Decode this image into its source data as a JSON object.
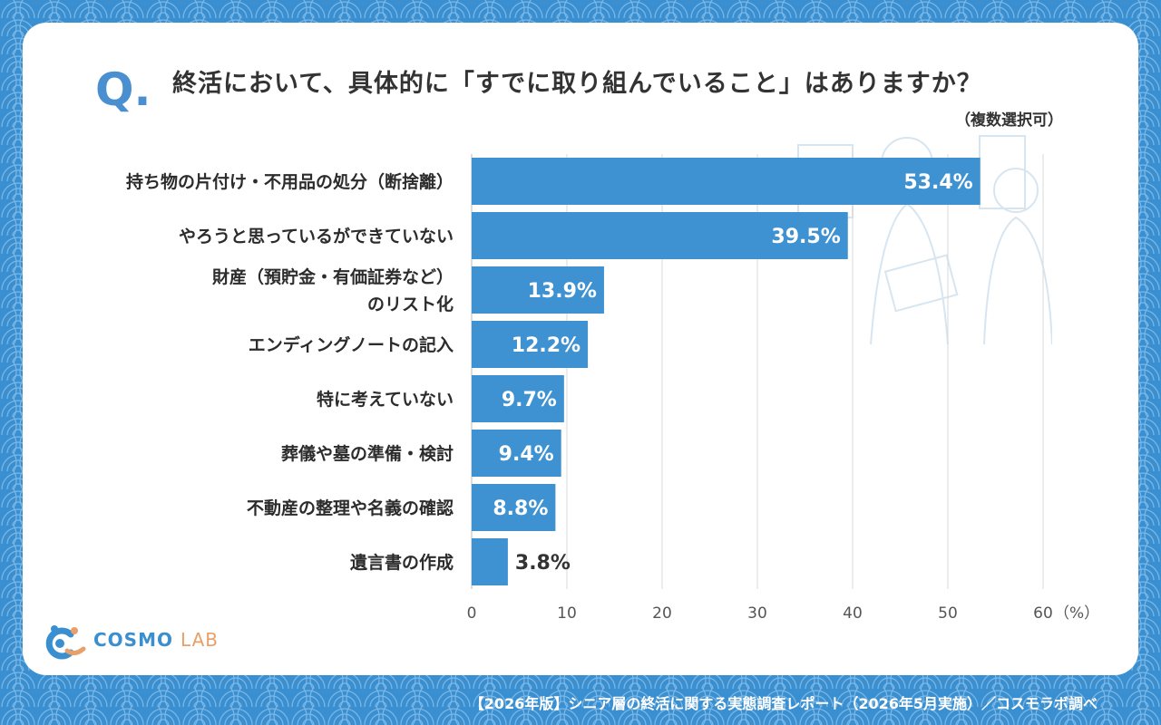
{
  "header": {
    "q_mark": "Q.",
    "title": "終活において、具体的に「すでに取り組んでいること」はありますか？",
    "note": "（複数選択可）"
  },
  "logo": {
    "part1": "COSMO",
    "part2": "LAB"
  },
  "footer": "【2026年版】シニア層の終活に関する実態調査レポート（2026年5月実施）／コスモラボ調べ",
  "colors": {
    "bar": "#3f92d2",
    "background": "#3a8fd0",
    "card": "#ffffff",
    "grid": "#d9d9d9"
  },
  "chart_data": {
    "type": "bar",
    "orientation": "horizontal",
    "categories": [
      [
        "持ち物の片付け・不用品の処分（断捨離）"
      ],
      [
        "やろうと思っているができていない"
      ],
      [
        "財産（預貯金・有価証券など）",
        "のリスト化"
      ],
      [
        "エンディングノートの記入"
      ],
      [
        "特に考えていない"
      ],
      [
        "葬儀や墓の準備・検討"
      ],
      [
        "不動産の整理や名義の確認"
      ],
      [
        "遺言書の作成"
      ]
    ],
    "values": [
      53.4,
      39.5,
      13.9,
      12.2,
      9.7,
      9.4,
      8.8,
      3.8
    ],
    "value_labels": [
      "53.4%",
      "39.5%",
      "13.9%",
      "12.2%",
      "9.7%",
      "9.4%",
      "8.8%",
      "3.8%"
    ],
    "xlim": [
      0,
      60
    ],
    "xticks": [
      0,
      10,
      20,
      30,
      40,
      50,
      60
    ],
    "xunit": "（%）",
    "grid": true
  }
}
